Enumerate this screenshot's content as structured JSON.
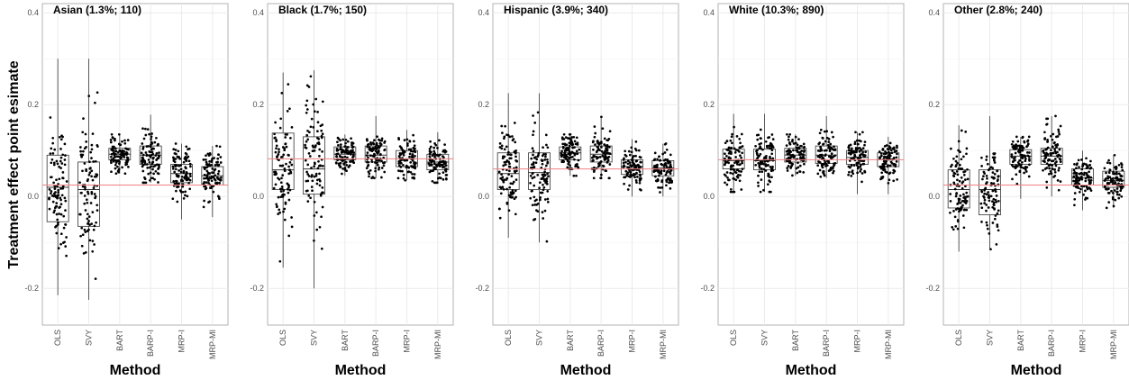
{
  "figure": {
    "ylabel": "Treatment effect point esimate",
    "xlabel": "Method"
  },
  "chart_data": {
    "type": "box-jitter",
    "ylim": [
      -0.28,
      0.42
    ],
    "yticks": [
      -0.2,
      0.0,
      0.2,
      0.4
    ],
    "ytick_labels": [
      "-0.2",
      "0.0",
      "0.2",
      "0.4"
    ],
    "categories": [
      "OLS",
      "SVY",
      "BART",
      "BARP-I",
      "MRP-I",
      "MRP-MI"
    ],
    "grid": true,
    "colors": {
      "reference_line": "#f08080",
      "points": "#000000",
      "box": "#333333",
      "panel_border": "#b3b3b3",
      "grid": "#ebebeb"
    },
    "panels": [
      {
        "title": "Asian (1.3%; 110)",
        "reference_value": 0.025,
        "boxes": [
          {
            "method": "OLS",
            "q1": -0.055,
            "median": 0.02,
            "q3": 0.09,
            "whisker_low": -0.215,
            "whisker_high": 0.3,
            "spread": 0.075
          },
          {
            "method": "SVY",
            "q1": -0.065,
            "median": 0.015,
            "q3": 0.075,
            "whisker_low": -0.225,
            "whisker_high": 0.3,
            "spread": 0.08
          },
          {
            "method": "BART",
            "q1": 0.08,
            "median": 0.092,
            "q3": 0.105,
            "whisker_low": 0.05,
            "whisker_high": 0.135,
            "spread": 0.018
          },
          {
            "method": "BARP-I",
            "q1": 0.07,
            "median": 0.09,
            "q3": 0.11,
            "whisker_low": 0.03,
            "whisker_high": 0.178,
            "spread": 0.028
          },
          {
            "method": "MRP-I",
            "q1": 0.03,
            "median": 0.05,
            "q3": 0.07,
            "whisker_low": -0.05,
            "whisker_high": 0.115,
            "spread": 0.03
          },
          {
            "method": "MRP-MI",
            "q1": 0.025,
            "median": 0.045,
            "q3": 0.065,
            "whisker_low": -0.045,
            "whisker_high": 0.11,
            "spread": 0.03
          }
        ]
      },
      {
        "title": "Black (1.7%; 150)",
        "reference_value": 0.082,
        "boxes": [
          {
            "method": "OLS",
            "q1": 0.015,
            "median": 0.058,
            "q3": 0.138,
            "whisker_low": -0.155,
            "whisker_high": 0.27,
            "spread": 0.07
          },
          {
            "method": "SVY",
            "q1": 0.005,
            "median": 0.06,
            "q3": 0.13,
            "whisker_low": -0.2,
            "whisker_high": 0.275,
            "spread": 0.075
          },
          {
            "method": "BART",
            "q1": 0.08,
            "median": 0.092,
            "q3": 0.108,
            "whisker_low": 0.045,
            "whisker_high": 0.135,
            "spread": 0.02
          },
          {
            "method": "BARP-I",
            "q1": 0.075,
            "median": 0.09,
            "q3": 0.11,
            "whisker_low": 0.04,
            "whisker_high": 0.175,
            "spread": 0.025
          },
          {
            "method": "MRP-I",
            "q1": 0.065,
            "median": 0.082,
            "q3": 0.1,
            "whisker_low": 0.035,
            "whisker_high": 0.145,
            "spread": 0.022
          },
          {
            "method": "MRP-MI",
            "q1": 0.058,
            "median": 0.075,
            "q3": 0.092,
            "whisker_low": 0.03,
            "whisker_high": 0.14,
            "spread": 0.022
          }
        ]
      },
      {
        "title": "Hispanic (3.9%; 340)",
        "reference_value": 0.06,
        "boxes": [
          {
            "method": "OLS",
            "q1": 0.015,
            "median": 0.05,
            "q3": 0.095,
            "whisker_low": -0.09,
            "whisker_high": 0.225,
            "spread": 0.05
          },
          {
            "method": "SVY",
            "q1": 0.015,
            "median": 0.052,
            "q3": 0.095,
            "whisker_low": -0.1,
            "whisker_high": 0.225,
            "spread": 0.05
          },
          {
            "method": "BART",
            "q1": 0.08,
            "median": 0.095,
            "q3": 0.108,
            "whisker_low": 0.045,
            "whisker_high": 0.135,
            "spread": 0.02
          },
          {
            "method": "BARP-I",
            "q1": 0.075,
            "median": 0.092,
            "q3": 0.11,
            "whisker_low": 0.04,
            "whisker_high": 0.175,
            "spread": 0.025
          },
          {
            "method": "MRP-I",
            "q1": 0.048,
            "median": 0.065,
            "q3": 0.08,
            "whisker_low": 0.0,
            "whisker_high": 0.125,
            "spread": 0.02
          },
          {
            "method": "MRP-MI",
            "q1": 0.045,
            "median": 0.062,
            "q3": 0.078,
            "whisker_low": 0.0,
            "whisker_high": 0.115,
            "spread": 0.02
          }
        ]
      },
      {
        "title": "White (10.3%; 890)",
        "reference_value": 0.08,
        "boxes": [
          {
            "method": "OLS",
            "q1": 0.06,
            "median": 0.078,
            "q3": 0.103,
            "whisker_low": 0.01,
            "whisker_high": 0.18,
            "spread": 0.028
          },
          {
            "method": "SVY",
            "q1": 0.058,
            "median": 0.078,
            "q3": 0.103,
            "whisker_low": 0.01,
            "whisker_high": 0.18,
            "spread": 0.03
          },
          {
            "method": "BART",
            "q1": 0.075,
            "median": 0.09,
            "q3": 0.105,
            "whisker_low": 0.045,
            "whisker_high": 0.135,
            "spread": 0.02
          },
          {
            "method": "BARP-I",
            "q1": 0.072,
            "median": 0.09,
            "q3": 0.11,
            "whisker_low": 0.04,
            "whisker_high": 0.175,
            "spread": 0.025
          },
          {
            "method": "MRP-I",
            "q1": 0.07,
            "median": 0.085,
            "q3": 0.1,
            "whisker_low": 0.005,
            "whisker_high": 0.14,
            "spread": 0.02
          },
          {
            "method": "MRP-MI",
            "q1": 0.065,
            "median": 0.08,
            "q3": 0.095,
            "whisker_low": 0.005,
            "whisker_high": 0.13,
            "spread": 0.02
          }
        ]
      },
      {
        "title": "Other (2.8%; 240)",
        "reference_value": 0.025,
        "boxes": [
          {
            "method": "OLS",
            "q1": -0.025,
            "median": 0.015,
            "q3": 0.058,
            "whisker_low": -0.12,
            "whisker_high": 0.155,
            "spread": 0.05
          },
          {
            "method": "SVY",
            "q1": -0.04,
            "median": 0.015,
            "q3": 0.058,
            "whisker_low": -0.115,
            "whisker_high": 0.175,
            "spread": 0.05
          },
          {
            "method": "BART",
            "q1": 0.07,
            "median": 0.088,
            "q3": 0.102,
            "whisker_low": -0.005,
            "whisker_high": 0.13,
            "spread": 0.025
          },
          {
            "method": "BARP-I",
            "q1": 0.07,
            "median": 0.088,
            "q3": 0.105,
            "whisker_low": 0.0,
            "whisker_high": 0.175,
            "spread": 0.028
          },
          {
            "method": "MRP-I",
            "q1": 0.025,
            "median": 0.04,
            "q3": 0.06,
            "whisker_low": -0.03,
            "whisker_high": 0.1,
            "spread": 0.022
          },
          {
            "method": "MRP-MI",
            "q1": 0.02,
            "median": 0.035,
            "q3": 0.055,
            "whisker_low": -0.025,
            "whisker_high": 0.09,
            "spread": 0.022
          }
        ]
      }
    ]
  }
}
